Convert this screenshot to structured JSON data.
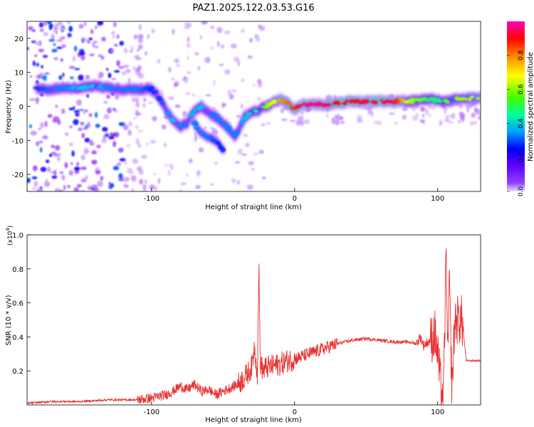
{
  "figure": {
    "title": "PAZ1.2025.122.03.53.G16"
  },
  "chart_data": [
    {
      "type": "heatmap",
      "title": "PAZ1.2025.122.03.53.G16",
      "xlabel": "Height of straight line (km)",
      "ylabel": "Frequency (Hz)",
      "xlim": [
        -187,
        130
      ],
      "ylim": [
        -25,
        25
      ],
      "xticks": [
        -100,
        0,
        100
      ],
      "xtick_labels": [
        "-100",
        "0",
        "100"
      ],
      "yticks": [
        -20,
        -10,
        0,
        10,
        20
      ],
      "ytick_labels": [
        "-20",
        "-10",
        "0",
        "10",
        "20"
      ],
      "colorbar": {
        "label": "Normalized spectral amplitude",
        "range": [
          0,
          1
        ],
        "ticks": [
          0.0,
          0.2,
          0.4,
          0.6,
          0.8
        ],
        "tick_labels": [
          "0.0",
          "0.2",
          "0.4",
          "0.6",
          "0.8"
        ],
        "colormap": [
          "#e8e0f8",
          "#8000ff",
          "#0000ff",
          "#00c0ff",
          "#00ff80",
          "#80ff00",
          "#ffff00",
          "#ff8000",
          "#ff0000",
          "#ff00ff"
        ]
      },
      "ridge": {
        "x": [
          -180,
          -170,
          -160,
          -150,
          -140,
          -130,
          -120,
          -110,
          -100,
          -95,
          -90,
          -85,
          -80,
          -75,
          -70,
          -65,
          -60,
          -55,
          -50,
          -45,
          -42,
          -38,
          -35,
          -30,
          -25,
          -20,
          -15,
          -10,
          -5,
          0,
          5,
          10,
          20,
          30,
          40,
          50,
          60,
          70,
          80,
          90,
          100,
          105,
          110,
          120,
          130
        ],
        "frequency": [
          5,
          5,
          5.5,
          5.5,
          6,
          5.5,
          5,
          5,
          5,
          3,
          -1,
          -4,
          -6,
          -5,
          -1,
          0,
          -2,
          -3,
          -5,
          -7,
          -9,
          -6,
          -3,
          -2,
          -1,
          0,
          1,
          2,
          1,
          -1,
          0.5,
          0.5,
          0.5,
          1,
          1.5,
          1.5,
          1.5,
          1.5,
          1.5,
          2,
          2,
          1.5,
          2,
          2.5,
          2.5
        ],
        "amplitude": [
          0.25,
          0.3,
          0.3,
          0.35,
          0.35,
          0.3,
          0.3,
          0.3,
          0.25,
          0.25,
          0.3,
          0.35,
          0.3,
          0.3,
          0.35,
          0.35,
          0.3,
          0.3,
          0.3,
          0.3,
          0.3,
          0.3,
          0.35,
          0.4,
          0.45,
          0.55,
          0.65,
          0.75,
          0.8,
          0.85,
          0.95,
          0.95,
          0.95,
          0.9,
          0.9,
          0.92,
          0.92,
          0.92,
          0.6,
          0.5,
          0.45,
          0.5,
          0.55,
          0.6,
          0.7
        ]
      },
      "secondary_branch": {
        "x": [
          -70,
          -65,
          -60,
          -55,
          -50
        ],
        "frequency": [
          -5,
          -8,
          -9,
          -10,
          -13
        ],
        "amplitude": [
          0.3,
          0.3,
          0.3,
          0.25,
          0.25
        ]
      }
    },
    {
      "type": "line",
      "title": "",
      "xlabel": "Height of straight line (km)",
      "ylabel": "SNR (10 * v/v)",
      "y_multiplier": "(x10",
      "y_multiplier_exp": "4",
      "y_multiplier_close": ")",
      "xlim": [
        -187,
        130
      ],
      "ylim": [
        0,
        1.0
      ],
      "xticks": [
        -100,
        0,
        100
      ],
      "xtick_labels": [
        "-100",
        "0",
        "100"
      ],
      "yticks": [
        0.2,
        0.4,
        0.6,
        0.8,
        1.0
      ],
      "ytick_labels": [
        "0.2",
        "0.4",
        "0.6",
        "0.8",
        "1.0"
      ],
      "series": [
        {
          "color": "#e83030",
          "x": [
            -187,
            -170,
            -150,
            -130,
            -110,
            -100,
            -90,
            -85,
            -80,
            -75,
            -70,
            -65,
            -60,
            -55,
            -50,
            -45,
            -40,
            -35,
            -30,
            -28,
            -26,
            -25,
            -24,
            -22,
            -20,
            -15,
            -10,
            -5,
            0,
            10,
            20,
            30,
            40,
            50,
            60,
            70,
            80,
            85,
            88,
            90,
            95,
            98,
            100,
            102,
            104,
            106,
            107,
            108,
            110,
            112,
            115,
            117,
            120,
            125,
            130
          ],
          "y": [
            0.01,
            0.02,
            0.02,
            0.03,
            0.03,
            0.04,
            0.06,
            0.08,
            0.11,
            0.09,
            0.12,
            0.08,
            0.09,
            0.06,
            0.08,
            0.1,
            0.12,
            0.16,
            0.22,
            0.35,
            0.18,
            0.84,
            0.25,
            0.2,
            0.22,
            0.23,
            0.24,
            0.26,
            0.27,
            0.3,
            0.33,
            0.36,
            0.38,
            0.39,
            0.38,
            0.37,
            0.37,
            0.36,
            0.4,
            0.35,
            0.38,
            0.42,
            0.3,
            0.12,
            0.02,
            0.95,
            0.2,
            0.75,
            0.1,
            0.5,
            0.5,
            0.5,
            0.26,
            0.26,
            0.26
          ]
        }
      ]
    }
  ]
}
